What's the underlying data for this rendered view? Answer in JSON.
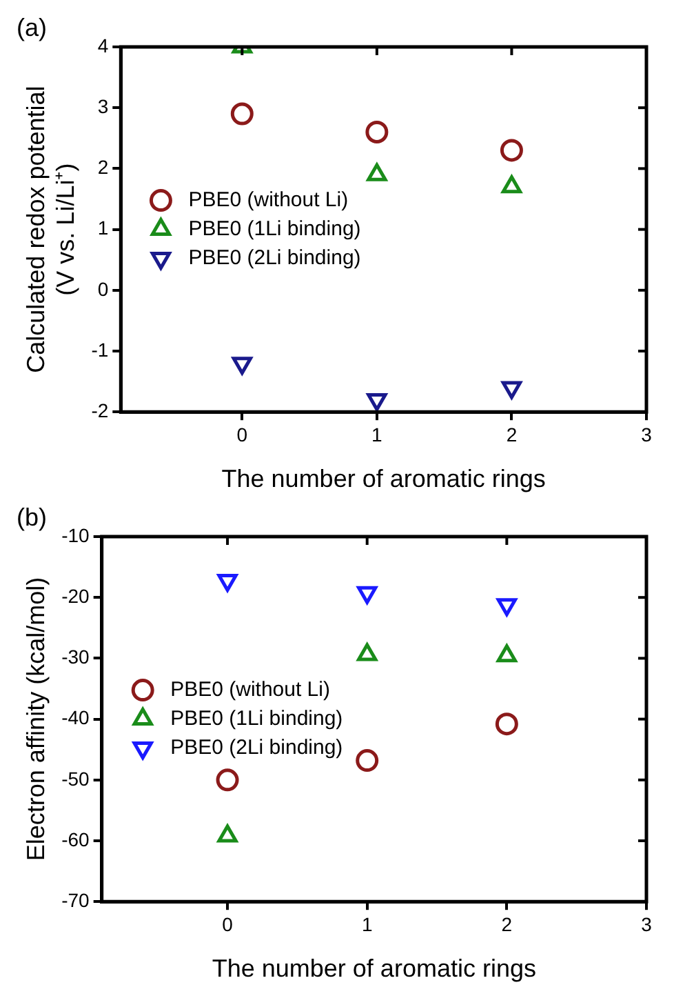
{
  "chart_data": [
    {
      "type": "scatter",
      "annotations": [
        "(a)"
      ],
      "ylabel": "Calculated redox potential\n(V vs. Li/Li⁺)",
      "xlabel": "The number of aromatic rings",
      "xlim": [
        -0.9,
        3
      ],
      "xticks": [
        0,
        1,
        2,
        3
      ],
      "ylim": [
        -2,
        4
      ],
      "yticks": [
        -2,
        -1,
        0,
        1,
        2,
        3,
        4
      ],
      "grid": false,
      "legend": "left",
      "series": [
        {
          "name": "PBE0 (without Li)",
          "color": "#8b1a1a",
          "marker": "circle",
          "x": [
            0,
            1,
            2
          ],
          "values": [
            2.9,
            2.6,
            2.3
          ]
        },
        {
          "name": "PBE0 (1Li binding)",
          "color": "#1a8c1a",
          "marker": "triangle",
          "x": [
            0,
            1,
            2
          ],
          "values": [
            4.0,
            1.9,
            1.7
          ]
        },
        {
          "name": "PBE0 (2Li binding)",
          "color": "#1a1a8c",
          "marker": "triangle-down",
          "x": [
            0,
            1,
            2
          ],
          "values": [
            -1.2,
            -1.8,
            -1.6
          ]
        }
      ]
    },
    {
      "type": "scatter",
      "annotations": [
        "(b)"
      ],
      "ylabel": "Electron affinity (kcal/mol)",
      "xlabel": "The number of aromatic rings",
      "xlim": [
        -0.9,
        3
      ],
      "xticks": [
        0,
        1,
        2,
        3
      ],
      "ylim": [
        -70,
        -10
      ],
      "yticks": [
        -70,
        -60,
        -50,
        -40,
        -30,
        -20,
        -10
      ],
      "grid": false,
      "legend": "left",
      "series": [
        {
          "name": "PBE0 (without Li)",
          "color": "#8b1a1a",
          "marker": "circle",
          "x": [
            0,
            1,
            2
          ],
          "values": [
            -50,
            -46.8,
            -40.8
          ]
        },
        {
          "name": "PBE0 (1Li binding)",
          "color": "#1a8c1a",
          "marker": "triangle",
          "x": [
            0,
            1,
            2
          ],
          "values": [
            -59.2,
            -29.4,
            -29.6
          ]
        },
        {
          "name": "PBE0 (2Li binding)",
          "color": "#1a1aff",
          "marker": "triangle-down",
          "x": [
            0,
            1,
            2
          ],
          "values": [
            -17.2,
            -19.2,
            -21.2
          ]
        }
      ]
    }
  ]
}
